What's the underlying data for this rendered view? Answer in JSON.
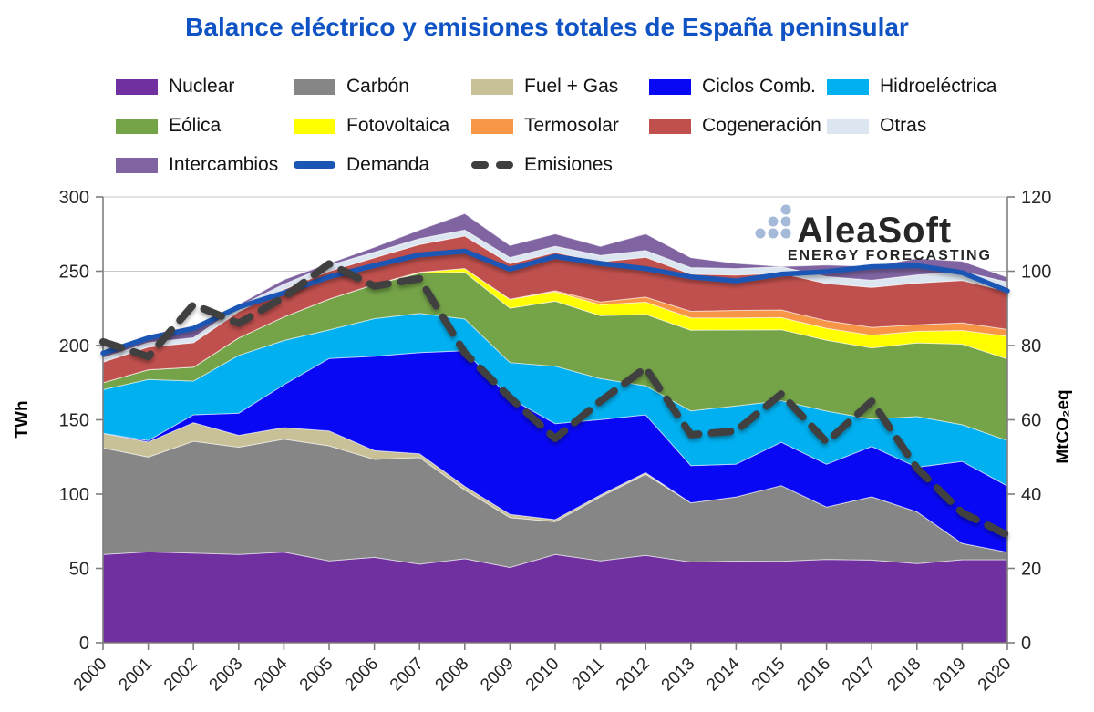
{
  "title": "Balance eléctrico y emisiones totales de España peninsular",
  "watermark": {
    "brand": "AleaSoft",
    "subtitle": "ENERGY FORECASTING",
    "color": "#A5BAD9"
  },
  "style": {
    "title_color": "#1053C4",
    "grid_color": "#C9C9C9",
    "axis_color": "#7F7F7F",
    "tick_text_color": "#262626",
    "area_edge_color": "rgba(255,255,255,0.55)"
  },
  "legend": {
    "rows": [
      [
        {
          "id": "nuclear",
          "label": "Nuclear",
          "swatch": "area",
          "color": "#7030A0"
        },
        {
          "id": "carbon",
          "label": "Carbón",
          "swatch": "area",
          "color": "#868686"
        },
        {
          "id": "fuel_gas",
          "label": "Fuel + Gas",
          "swatch": "area",
          "color": "#C8C096"
        },
        {
          "id": "ciclos_comb",
          "label": "Ciclos Comb.",
          "swatch": "area",
          "color": "#0808F5"
        },
        {
          "id": "hidroelectrica",
          "label": "Hidroeléctrica",
          "swatch": "area",
          "color": "#00B0F0"
        }
      ],
      [
        {
          "id": "eolica",
          "label": "Eólica",
          "swatch": "area",
          "color": "#74A348"
        },
        {
          "id": "fotovoltaica",
          "label": "Fotovoltaica",
          "swatch": "area",
          "color": "#FFFF00"
        },
        {
          "id": "termosolar",
          "label": "Termosolar",
          "swatch": "area",
          "color": "#F79646"
        },
        {
          "id": "cogeneracion",
          "label": "Cogeneración",
          "swatch": "area",
          "color": "#C0504D"
        },
        {
          "id": "otras",
          "label": "Otras",
          "swatch": "area",
          "color": "#DCE6F1"
        }
      ],
      [
        {
          "id": "intercambios",
          "label": "Intercambios",
          "swatch": "area",
          "color": "#8064A2"
        },
        {
          "id": "demanda",
          "label": "Demanda",
          "swatch": "line",
          "color": "#1A56B4"
        },
        {
          "id": "emisiones",
          "label": "Emisiones",
          "swatch": "dash",
          "color": "#3F3F3F"
        }
      ]
    ]
  },
  "chart_data": {
    "type": "area",
    "stacked": true,
    "x": [
      2000,
      2001,
      2002,
      2003,
      2004,
      2005,
      2006,
      2007,
      2008,
      2009,
      2010,
      2011,
      2012,
      2013,
      2014,
      2015,
      2016,
      2017,
      2018,
      2019,
      2020
    ],
    "left_axis": {
      "label": "TWh",
      "min": 0,
      "max": 300,
      "step": 50
    },
    "right_axis": {
      "label": "MtCO₂eq",
      "min": 0,
      "max": 120,
      "step": 20
    },
    "grid": "horizontal",
    "legend_position": "top",
    "series": [
      {
        "id": "nuclear",
        "name": "Nuclear",
        "type": "area",
        "axis": "left",
        "color": "#7030A0",
        "values": [
          59.3,
          61.1,
          60.3,
          59.4,
          61.0,
          55.1,
          57.4,
          52.8,
          56.5,
          50.6,
          59.3,
          55.1,
          58.7,
          54.3,
          54.9,
          54.8,
          56.1,
          55.6,
          53.2,
          55.8,
          55.8
        ]
      },
      {
        "id": "carbon",
        "name": "Carbón",
        "type": "area",
        "axis": "left",
        "color": "#868686",
        "values": [
          71.8,
          63.9,
          75.3,
          72.2,
          76.0,
          77.4,
          66.0,
          71.8,
          46.3,
          33.6,
          22.1,
          43.1,
          54.7,
          39.8,
          43.2,
          50.9,
          35.2,
          42.6,
          34.9,
          11.0,
          5.1
        ]
      },
      {
        "id": "fuel_gas",
        "name": "Fuel + Gas",
        "type": "area",
        "axis": "left",
        "color": "#C8C096",
        "values": [
          9.9,
          10.0,
          12.5,
          8.0,
          7.7,
          10.0,
          5.9,
          2.5,
          2.4,
          2.1,
          1.4,
          1.2,
          1.0,
          0.0,
          0.0,
          0.0,
          0.0,
          0.0,
          0.0,
          0.0,
          0.0
        ]
      },
      {
        "id": "ciclos_comb",
        "name": "Ciclos Comb.",
        "type": "area",
        "axis": "left",
        "color": "#0808F5",
        "values": [
          0.0,
          1.1,
          5.3,
          14.9,
          28.9,
          48.8,
          63.5,
          68.1,
          91.3,
          78.3,
          64.6,
          50.7,
          39.0,
          25.1,
          22.1,
          29.2,
          28.8,
          33.9,
          30.0,
          55.2,
          44.6
        ]
      },
      {
        "id": "hidroelectrica",
        "name": "Hidroeléctrica",
        "type": "area",
        "axis": "left",
        "color": "#00B0F0",
        "values": [
          29.3,
          41.0,
          22.7,
          38.9,
          29.8,
          19.2,
          25.3,
          26.4,
          21.4,
          23.9,
          38.7,
          27.6,
          19.5,
          36.8,
          39.2,
          28.0,
          35.8,
          18.4,
          34.1,
          24.7,
          30.6
        ]
      },
      {
        "id": "eolica",
        "name": "Eólica",
        "type": "area",
        "axis": "left",
        "color": "#74A348",
        "values": [
          4.7,
          6.6,
          9.3,
          11.7,
          15.8,
          20.7,
          22.9,
          27.2,
          31.4,
          36.6,
          43.7,
          42.4,
          48.1,
          54.3,
          51.0,
          47.7,
          47.7,
          47.9,
          49.6,
          54.2,
          54.9
        ]
      },
      {
        "id": "fotovoltaica",
        "name": "Fotovoltaica",
        "type": "area",
        "axis": "left",
        "color": "#FFFF00",
        "values": [
          0.0,
          0.0,
          0.0,
          0.0,
          0.0,
          0.0,
          0.1,
          0.5,
          2.5,
          5.9,
          6.4,
          7.4,
          8.2,
          8.3,
          8.2,
          8.2,
          8.0,
          8.5,
          7.8,
          9.2,
          15.3
        ]
      },
      {
        "id": "termosolar",
        "name": "Termosolar",
        "type": "area",
        "axis": "left",
        "color": "#F79646",
        "values": [
          0.0,
          0.0,
          0.0,
          0.0,
          0.0,
          0.0,
          0.0,
          0.0,
          0.0,
          0.1,
          0.7,
          1.8,
          3.4,
          4.4,
          5.0,
          5.1,
          5.1,
          5.3,
          4.4,
          5.2,
          4.5
        ]
      },
      {
        "id": "cogeneracion",
        "name": "Cogeneración",
        "type": "area",
        "axis": "left",
        "color": "#C0504D",
        "values": [
          13.8,
          15.3,
          16.5,
          17.7,
          18.5,
          18.8,
          17.9,
          18.7,
          21.9,
          24.0,
          25.7,
          27.0,
          26.8,
          25.0,
          23.8,
          24.6,
          25.0,
          26.9,
          28.0,
          28.5,
          25.6
        ]
      },
      {
        "id": "otras",
        "name": "Otras",
        "type": "area",
        "axis": "left",
        "color": "#DCE6F1",
        "values": [
          2.9,
          3.0,
          3.3,
          3.5,
          3.6,
          3.9,
          3.8,
          3.9,
          4.0,
          4.1,
          4.2,
          4.3,
          4.5,
          4.4,
          4.4,
          4.5,
          4.7,
          4.8,
          5.5,
          6.0,
          6.3
        ]
      },
      {
        "id": "intercambios",
        "name": "Intercambios",
        "type": "area",
        "axis": "left",
        "color": "#8064A2",
        "values": [
          4.4,
          3.5,
          5.3,
          1.3,
          3.0,
          1.3,
          3.3,
          5.8,
          11.0,
          8.1,
          8.3,
          6.1,
          11.2,
          6.7,
          3.4,
          0.1,
          7.7,
          9.2,
          11.1,
          6.9,
          3.2
        ]
      },
      {
        "id": "demanda",
        "name": "Demanda",
        "type": "line",
        "axis": "left",
        "color": "#1A56B4",
        "values": [
          194.9,
          205.1,
          211.5,
          225.8,
          235.4,
          246.2,
          253.8,
          261.0,
          263.5,
          251.3,
          259.9,
          255.2,
          251.7,
          246.2,
          243.5,
          248.0,
          249.7,
          253.0,
          253.8,
          249.0,
          236.8
        ]
      },
      {
        "id": "emisiones",
        "name": "Emisiones",
        "type": "dashed-line",
        "axis": "right",
        "color": "#3F3F3F",
        "values": [
          81,
          77,
          91,
          86,
          93,
          102,
          96,
          98,
          78,
          66,
          55,
          65,
          74,
          56,
          57,
          67,
          54,
          65,
          47,
          35,
          29
        ]
      }
    ]
  }
}
